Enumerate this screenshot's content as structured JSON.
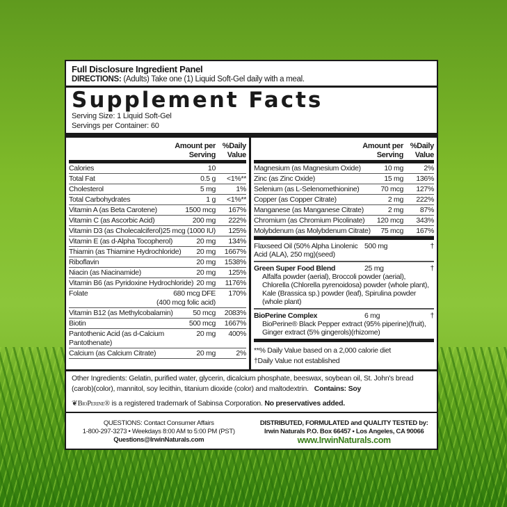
{
  "panel": {
    "title": "Full Disclosure Ingredient Panel",
    "directions_label": "DIRECTIONS:",
    "directions": " (Adults) Take one (1) Liquid Soft-Gel daily with a meal.",
    "heading": "Supplement Facts",
    "serving_size": "Serving Size:  1 Liquid Soft-Gel",
    "servings": "Servings per Container:  60"
  },
  "columns": {
    "amount": "Amount per Serving",
    "dv": "%Daily Value"
  },
  "left_rows": [
    [
      "Calories",
      "10",
      ""
    ],
    [
      "Total Fat",
      "0.5 g",
      "<1%**"
    ],
    [
      "Cholesterol",
      "5 mg",
      "1%"
    ],
    [
      "Total Carbohydrates",
      "1 g",
      "<1%**"
    ],
    [
      "Vitamin A (as Beta Carotene)",
      "1500 mcg",
      "167%"
    ],
    [
      "Vitamin C (as Ascorbic Acid)",
      "200 mg",
      "222%"
    ],
    [
      "Vitamin D3 (as Cholecalciferol)",
      "25 mcg (1000 IU)",
      "125%"
    ],
    [
      "Vitamin E (as d-Alpha Tocopherol)",
      "20 mg",
      "134%"
    ],
    [
      "Thiamin (as Thiamine Hydrochloride)",
      "20 mg",
      "1667%"
    ],
    [
      "Riboflavin",
      "20 mg",
      "1538%"
    ],
    [
      "Niacin (as Niacinamide)",
      "20 mg",
      "125%"
    ],
    [
      "Vitamin B6 (as Pyridoxine Hydrochloride)",
      "20 mg",
      "1176%"
    ],
    [
      "Folate",
      "680 mcg DFE\n(400 mcg folic acid)",
      "170%"
    ],
    [
      "Vitamin B12 (as Methylcobalamin)",
      "50 mcg",
      "2083%"
    ],
    [
      "Biotin",
      "500 mcg",
      "1667%"
    ],
    [
      "Pantothenic Acid (as d-Calcium Pantothenate)",
      "20 mg",
      "400%"
    ],
    [
      "Calcium (as Calcium Citrate)",
      "20 mg",
      "2%"
    ]
  ],
  "right_rows": [
    [
      "Magnesium (as Magnesium Oxide)",
      "10 mg",
      "2%"
    ],
    [
      "Zinc (as Zinc Oxide)",
      "15 mg",
      "136%"
    ],
    [
      "Selenium (as L-Selenomethionine)",
      "70 mcg",
      "127%"
    ],
    [
      "Copper (as Copper Citrate)",
      "2 mg",
      "222%"
    ],
    [
      "Manganese (as Manganese Citrate)",
      "2 mg",
      "87%"
    ],
    [
      "Chromium (as Chromium Picolinate)",
      "120 mcg",
      "343%"
    ],
    [
      "Molybdenum (as Molybdenum Citrate)",
      "75 mcg",
      "167%"
    ]
  ],
  "blends": [
    {
      "name": "Flaxseed Oil (50% Alpha Linolenic Acid (ALA), 250 mg)(seed)",
      "amount": "500 mg",
      "dv": "†",
      "desc": ""
    },
    {
      "name": "Green Super Food Blend",
      "amount": "25 mg",
      "dv": "†",
      "desc": "Alfalfa powder (aerial), Broccoli powder (aerial), Chlorella (Chlorella pyrenoidosa) powder (whole plant), Kale (Brassica sp.) powder (leaf), Spirulina powder (whole plant)"
    },
    {
      "name": "BioPerine Complex",
      "amount": "6 mg",
      "dv": "†",
      "desc": "BioPerine® Black Pepper extract (95% piperine)(fruit), Ginger extract (5% gingerols)(rhizome)"
    }
  ],
  "footnotes": [
    "**% Daily Value based on a 2,000 calorie diet",
    "†Daily Value not established"
  ],
  "other": {
    "text": "Other Ingredients: Gelatin, purified water, glycerin, dicalcium phosphate, beeswax, soybean oil, St. John's bread (carob)(color), mannitol, soy lecithin, titanium dioxide (color) and maltodextrin.",
    "contains": "Contains:  Soy"
  },
  "trademark": {
    "brand": "BioPerine®",
    "text": " is a registered trademark of Sabinsa Corporation. ",
    "bold": "No preservatives added."
  },
  "footer": {
    "q1": "QUESTIONS: Contact Consumer Affairs",
    "q2": "1-800-297-3273 • Weekdays 8:00 AM to 5:00 PM (PST)",
    "q3": "Questions@IrwinNaturals.com",
    "d1": "DISTRIBUTED, FORMULATED and QUALITY TESTED by:",
    "d2": "Irwin Naturals  P.O. Box 66457 • Los Angeles, CA 90066",
    "web": "www.IrwinNaturals.com"
  },
  "colors": {
    "web": "#3a7d1a",
    "background": "#7fbb2a"
  }
}
